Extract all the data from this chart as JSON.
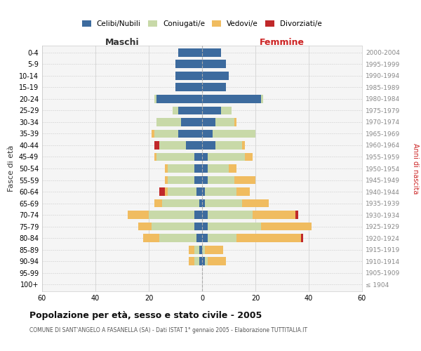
{
  "age_groups": [
    "100+",
    "95-99",
    "90-94",
    "85-89",
    "80-84",
    "75-79",
    "70-74",
    "65-69",
    "60-64",
    "55-59",
    "50-54",
    "45-49",
    "40-44",
    "35-39",
    "30-34",
    "25-29",
    "20-24",
    "15-19",
    "10-14",
    "5-9",
    "0-4"
  ],
  "birth_years": [
    "≤ 1904",
    "1905-1909",
    "1910-1914",
    "1915-1919",
    "1920-1924",
    "1925-1929",
    "1930-1934",
    "1935-1939",
    "1940-1944",
    "1945-1949",
    "1950-1954",
    "1955-1959",
    "1960-1964",
    "1965-1969",
    "1970-1974",
    "1975-1979",
    "1980-1984",
    "1985-1989",
    "1990-1994",
    "1995-1999",
    "2000-2004"
  ],
  "colors": {
    "celibi": "#3d6b9e",
    "coniugati": "#c8d9a8",
    "vedovi": "#f0bc60",
    "divorziati": "#c0282a"
  },
  "maschi": {
    "celibi": [
      0,
      0,
      1,
      1,
      2,
      3,
      3,
      1,
      2,
      3,
      3,
      3,
      6,
      9,
      8,
      9,
      17,
      10,
      10,
      10,
      9
    ],
    "coniugati": [
      0,
      0,
      2,
      2,
      14,
      16,
      17,
      14,
      11,
      10,
      10,
      14,
      10,
      9,
      9,
      2,
      1,
      0,
      0,
      0,
      0
    ],
    "vedovi": [
      0,
      0,
      2,
      2,
      6,
      5,
      8,
      3,
      1,
      1,
      1,
      1,
      0,
      1,
      0,
      0,
      0,
      0,
      0,
      0,
      0
    ],
    "divorziati": [
      0,
      0,
      0,
      0,
      0,
      0,
      0,
      0,
      2,
      0,
      0,
      0,
      2,
      0,
      0,
      0,
      0,
      0,
      0,
      0,
      0
    ]
  },
  "femmine": {
    "celibi": [
      0,
      0,
      1,
      0,
      2,
      2,
      2,
      1,
      1,
      2,
      2,
      2,
      5,
      4,
      5,
      7,
      22,
      9,
      10,
      9,
      7
    ],
    "coniugati": [
      0,
      0,
      1,
      1,
      11,
      20,
      17,
      14,
      12,
      10,
      8,
      14,
      10,
      16,
      7,
      4,
      1,
      0,
      0,
      0,
      0
    ],
    "vedovi": [
      0,
      0,
      7,
      7,
      24,
      19,
      16,
      10,
      5,
      8,
      3,
      3,
      1,
      0,
      1,
      0,
      0,
      0,
      0,
      0,
      0
    ],
    "divorziati": [
      0,
      0,
      0,
      0,
      1,
      0,
      1,
      0,
      0,
      0,
      0,
      0,
      0,
      0,
      0,
      0,
      0,
      0,
      0,
      0,
      0
    ]
  },
  "title": "Popolazione per età, sesso e stato civile - 2005",
  "subtitle": "COMUNE DI SANT'ANGELO A FASANELLA (SA) - Dati ISTAT 1° gennaio 2005 - Elaborazione TUTTITALIA.IT",
  "label_maschi": "Maschi",
  "label_femmine": "Femmine",
  "ylabel_left": "Fasce di età",
  "ylabel_right": "Anni di nascita",
  "xlim": 60,
  "xticks": [
    -60,
    -40,
    -20,
    0,
    20,
    40,
    60
  ],
  "xtick_labels": [
    "60",
    "40",
    "20",
    "0",
    "20",
    "40",
    "60"
  ],
  "bg_color": "#ffffff",
  "plot_bg": "#f5f5f5",
  "grid_color": "#cccccc",
  "legend_labels": [
    "Celibi/Nubili",
    "Coniugati/e",
    "Vedovi/e",
    "Divorziati/e"
  ]
}
